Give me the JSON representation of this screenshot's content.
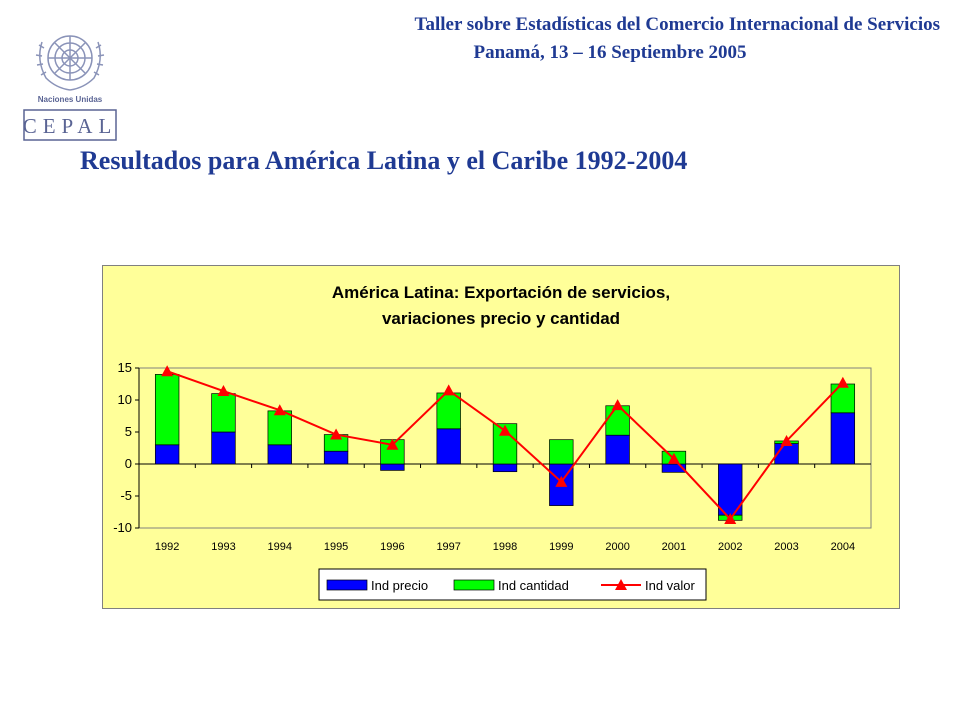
{
  "header": {
    "line1": "Taller sobre Estadísticas del Comercio Internacional de Servicios",
    "line2": "Panamá, 13 – 16 Septiembre 2005"
  },
  "logo": {
    "org_text": "Naciones Unidas",
    "acronym": "CEPAL",
    "icon": "un-emblem-icon"
  },
  "slide_title": "Resultados para América Latina y el Caribe 1992-2004",
  "colors": {
    "header_text": "#1f3a93",
    "chart_bg": "#ffff99",
    "plot_bg": "#ffff99",
    "price": "#0000ff",
    "quantity": "#00ff00",
    "value": "#ff0000"
  },
  "chart_data": {
    "type": "bar",
    "stacked": true,
    "title_lines": [
      "América Latina: Exportación de servicios,",
      "variaciones precio y cantidad"
    ],
    "categories": [
      "1992",
      "1993",
      "1994",
      "1995",
      "1996",
      "1997",
      "1998",
      "1999",
      "2000",
      "2001",
      "2002",
      "2003",
      "2004"
    ],
    "ylim": [
      -10,
      15
    ],
    "yticks": [
      "15",
      "10",
      "5",
      "0",
      "-5",
      "-10"
    ],
    "ytick_values": [
      15,
      10,
      5,
      0,
      -5,
      -10
    ],
    "grid": false,
    "legend_position": "bottom",
    "series": [
      {
        "name": "Ind precio",
        "kind": "bar",
        "values": [
          3,
          5,
          3,
          2,
          -1,
          5.5,
          -1.2,
          -6.5,
          4.5,
          -1.3,
          -8,
          3.2,
          8
        ]
      },
      {
        "name": "Ind cantidad",
        "kind": "bar",
        "values": [
          11,
          6,
          5.3,
          2.6,
          3.8,
          5.6,
          6.3,
          3.8,
          4.6,
          2,
          -0.8,
          0.4,
          4.5
        ]
      },
      {
        "name": "Ind valor",
        "kind": "line",
        "values": [
          14.5,
          11.4,
          8.4,
          4.6,
          3,
          11.5,
          5.2,
          -2.8,
          9.2,
          0.8,
          -8.6,
          3.6,
          12.7
        ]
      }
    ]
  }
}
